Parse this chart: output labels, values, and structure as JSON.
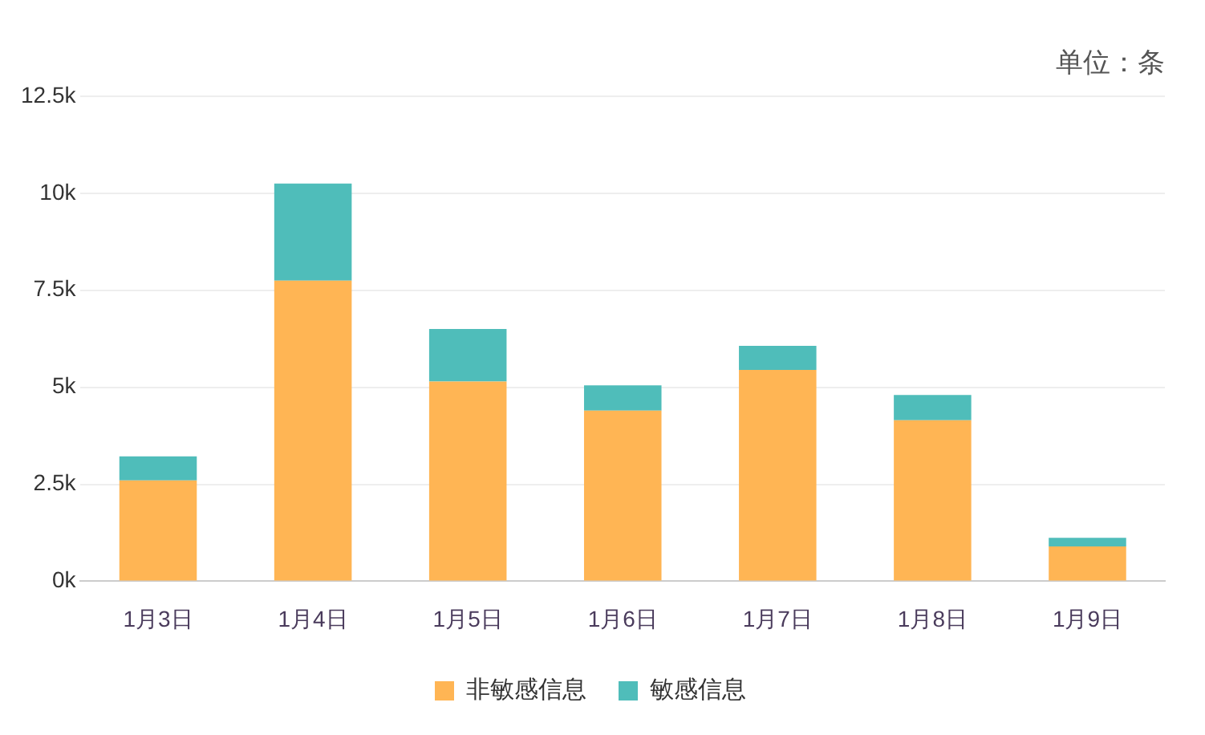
{
  "chart_data": {
    "type": "bar",
    "stacked": true,
    "categories": [
      "1月3日",
      "1月4日",
      "1月5日",
      "1月6日",
      "1月7日",
      "1月8日",
      "1月9日"
    ],
    "series": [
      {
        "name": "非敏感信息",
        "color": "#ffb554",
        "values": [
          2600,
          7750,
          5150,
          4400,
          5450,
          4150,
          900
        ]
      },
      {
        "name": "敏感信息",
        "color": "#4fbdba",
        "values": [
          620,
          2500,
          1350,
          650,
          620,
          650,
          220
        ]
      }
    ],
    "ylim": [
      0,
      12500
    ],
    "yticks": [
      {
        "value": 0,
        "label": "0k"
      },
      {
        "value": 2500,
        "label": "2.5k"
      },
      {
        "value": 5000,
        "label": "5k"
      },
      {
        "value": 7500,
        "label": "7.5k"
      },
      {
        "value": 10000,
        "label": "10k"
      },
      {
        "value": 12500,
        "label": "12.5k"
      }
    ],
    "grid": "y",
    "legend": "bottom",
    "annotations": [
      "单位：条"
    ]
  }
}
